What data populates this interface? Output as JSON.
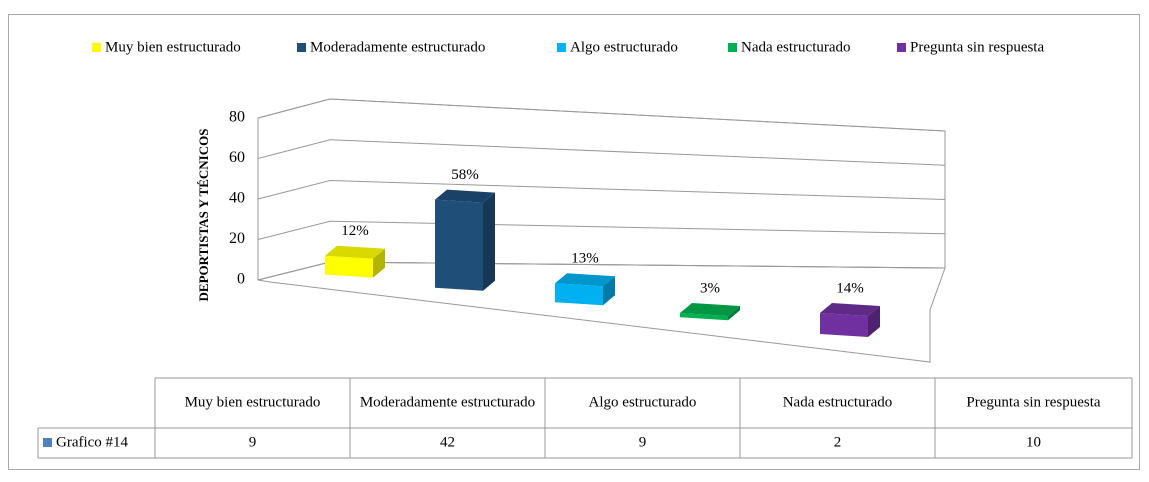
{
  "chart_data": {
    "type": "bar",
    "categories": [
      "Muy bien estructurado",
      "Moderadamente estructurado",
      "Algo estructurado",
      "Nada estructurado",
      "Pregunta sin respuesta"
    ],
    "category_colors": [
      "#ffff00",
      "#1f4e79",
      "#00b0f0",
      "#00b050",
      "#7030a0"
    ],
    "series": [
      {
        "name": "Grafico #14",
        "color": "#4f81bd",
        "values": [
          9,
          42,
          9,
          2,
          10
        ],
        "value_labels": [
          "12%",
          "58%",
          "13%",
          "3%",
          "14%"
        ]
      }
    ],
    "y_label": "DEPORTISTAS Y TÉCNICOS",
    "ylim": [
      0,
      80
    ],
    "yticks": [
      0,
      20,
      40,
      60,
      80
    ],
    "grid": true,
    "legend": "top",
    "data_table": true
  }
}
